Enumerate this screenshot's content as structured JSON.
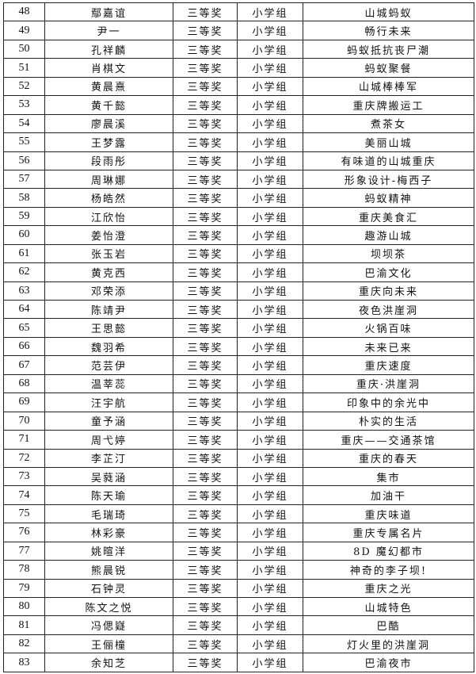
{
  "table": {
    "rows": [
      {
        "no": "48",
        "name": "鄢嘉谊",
        "award": "三等奖",
        "group": "小学组",
        "title": "山城蚂蚁"
      },
      {
        "no": "49",
        "name": "尹一",
        "award": "三等奖",
        "group": "小学组",
        "title": "畅行未来"
      },
      {
        "no": "50",
        "name": "孔祥麟",
        "award": "三等奖",
        "group": "小学组",
        "title": "蚂蚁抵抗丧尸潮"
      },
      {
        "no": "51",
        "name": "肖棋文",
        "award": "三等奖",
        "group": "小学组",
        "title": "蚂蚁聚餐"
      },
      {
        "no": "52",
        "name": "黄晨熹",
        "award": "三等奖",
        "group": "小学组",
        "title": "山城棒棒军"
      },
      {
        "no": "53",
        "name": "黄千懿",
        "award": "三等奖",
        "group": "小学组",
        "title": "重庆牌搬运工"
      },
      {
        "no": "54",
        "name": "廖晨溪",
        "award": "三等奖",
        "group": "小学组",
        "title": "煮茶女"
      },
      {
        "no": "55",
        "name": "王梦露",
        "award": "三等奖",
        "group": "小学组",
        "title": "美丽山城"
      },
      {
        "no": "56",
        "name": "段雨彤",
        "award": "三等奖",
        "group": "小学组",
        "title": "有味道的山城重庆"
      },
      {
        "no": "57",
        "name": "周琳娜",
        "award": "三等奖",
        "group": "小学组",
        "title": "形象设计-梅西子"
      },
      {
        "no": "58",
        "name": "杨皓然",
        "award": "三等奖",
        "group": "小学组",
        "title": "蚂蚁精神"
      },
      {
        "no": "59",
        "name": "江欣怡",
        "award": "三等奖",
        "group": "小学组",
        "title": "重庆美食汇"
      },
      {
        "no": "60",
        "name": "姜怡澄",
        "award": "三等奖",
        "group": "小学组",
        "title": "趣游山城"
      },
      {
        "no": "61",
        "name": "张玉岩",
        "award": "三等奖",
        "group": "小学组",
        "title": "坝坝茶"
      },
      {
        "no": "62",
        "name": "黄克西",
        "award": "三等奖",
        "group": "小学组",
        "title": "巴渝文化"
      },
      {
        "no": "63",
        "name": "邓荣添",
        "award": "三等奖",
        "group": "小学组",
        "title": "重庆向未来"
      },
      {
        "no": "64",
        "name": "陈靖尹",
        "award": "三等奖",
        "group": "小学组",
        "title": "夜色洪崖洞"
      },
      {
        "no": "65",
        "name": "王思懿",
        "award": "三等奖",
        "group": "小学组",
        "title": "火锅百味"
      },
      {
        "no": "66",
        "name": "魏羽希",
        "award": "三等奖",
        "group": "小学组",
        "title": "未来已来"
      },
      {
        "no": "67",
        "name": "范芸伊",
        "award": "三等奖",
        "group": "小学组",
        "title": "重庆速度"
      },
      {
        "no": "68",
        "name": "温莘蕊",
        "award": "三等奖",
        "group": "小学组",
        "title": "重庆·洪崖洞"
      },
      {
        "no": "69",
        "name": "汪宇航",
        "award": "三等奖",
        "group": "小学组",
        "title": "印象中的余光中"
      },
      {
        "no": "70",
        "name": "童予涵",
        "award": "三等奖",
        "group": "小学组",
        "title": "朴实的生活"
      },
      {
        "no": "71",
        "name": "周弋婷",
        "award": "三等奖",
        "group": "小学组",
        "title": "重庆——交通茶馆"
      },
      {
        "no": "72",
        "name": "李芷汀",
        "award": "三等奖",
        "group": "小学组",
        "title": "重庆的春天"
      },
      {
        "no": "73",
        "name": "吴蕤涵",
        "award": "三等奖",
        "group": "小学组",
        "title": "集市"
      },
      {
        "no": "74",
        "name": "陈天瑜",
        "award": "三等奖",
        "group": "小学组",
        "title": "加油干"
      },
      {
        "no": "75",
        "name": "毛瑞琦",
        "award": "三等奖",
        "group": "小学组",
        "title": "重庆味道"
      },
      {
        "no": "76",
        "name": "林彩豪",
        "award": "三等奖",
        "group": "小学组",
        "title": "重庆专属名片"
      },
      {
        "no": "77",
        "name": "姚暄洋",
        "award": "三等奖",
        "group": "小学组",
        "title": "8D 魔幻都市"
      },
      {
        "no": "78",
        "name": "熊晨锐",
        "award": "三等奖",
        "group": "小学组",
        "title": "神奇的李子坝!"
      },
      {
        "no": "79",
        "name": "石钟灵",
        "award": "三等奖",
        "group": "小学组",
        "title": "重庆之光"
      },
      {
        "no": "80",
        "name": "陈文之悦",
        "award": "三等奖",
        "group": "小学组",
        "title": "山城特色"
      },
      {
        "no": "81",
        "name": "冯偲嶷",
        "award": "三等奖",
        "group": "小学组",
        "title": "巴酷"
      },
      {
        "no": "82",
        "name": "王俪橦",
        "award": "三等奖",
        "group": "小学组",
        "title": "灯火里的洪崖洞"
      },
      {
        "no": "83",
        "name": "余知芝",
        "award": "三等奖",
        "group": "小学组",
        "title": "巴渝夜市"
      }
    ]
  }
}
